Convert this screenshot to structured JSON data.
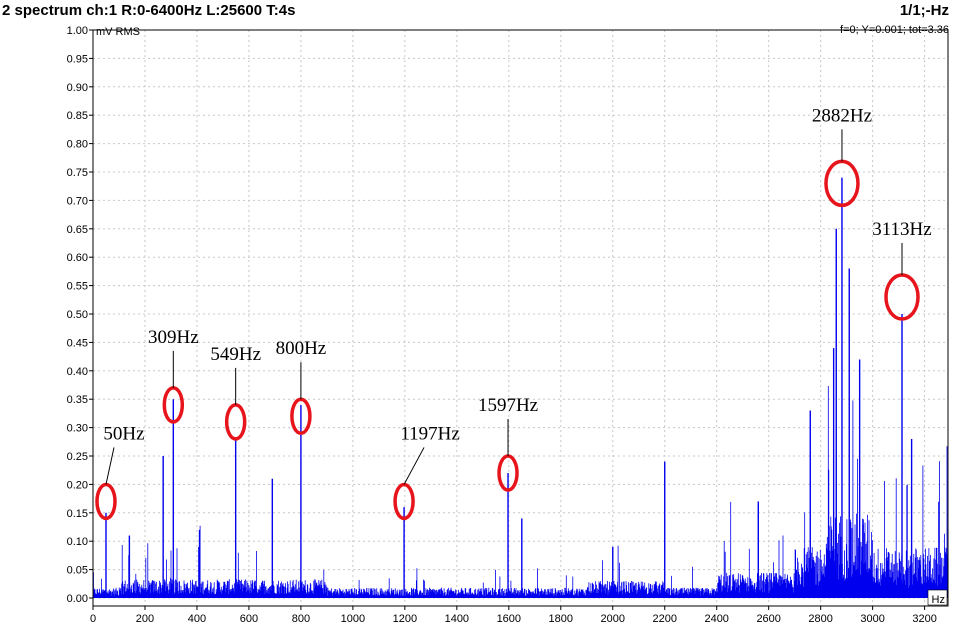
{
  "header": {
    "title": "2 spectrum ch:1 R:0-6400Hz L:25600 T:4s",
    "page_indicator": "1/1;-Hz",
    "status": "f=0; Y=0.001; tot=3.36"
  },
  "colors": {
    "trace": "#0000ee",
    "annotation": "#e8141c",
    "grid": "#c8c8c8"
  },
  "chart_data": {
    "type": "line",
    "ylabel": "mV RMS",
    "xlabel": "Hz",
    "xlim": [
      0,
      3290
    ],
    "ylim": [
      0,
      1.0
    ],
    "yticks": [
      "0.00",
      "0.05",
      "0.10",
      "0.15",
      "0.20",
      "0.25",
      "0.30",
      "0.35",
      "0.40",
      "0.45",
      "0.50",
      "0.55",
      "0.60",
      "0.65",
      "0.70",
      "0.75",
      "0.80",
      "0.85",
      "0.90",
      "0.95",
      "1.00"
    ],
    "xticks": [
      "0",
      "200",
      "400",
      "600",
      "800",
      "1000",
      "1200",
      "1400",
      "1600",
      "1800",
      "2000",
      "2200",
      "2400",
      "2600",
      "2800",
      "3000",
      "3200"
    ],
    "grid": true,
    "peaks": [
      {
        "x": 50,
        "y": 0.15
      },
      {
        "x": 140,
        "y": 0.11
      },
      {
        "x": 270,
        "y": 0.25
      },
      {
        "x": 309,
        "y": 0.35
      },
      {
        "x": 410,
        "y": 0.12
      },
      {
        "x": 549,
        "y": 0.28
      },
      {
        "x": 690,
        "y": 0.21
      },
      {
        "x": 800,
        "y": 0.34
      },
      {
        "x": 1197,
        "y": 0.16
      },
      {
        "x": 1597,
        "y": 0.22
      },
      {
        "x": 1650,
        "y": 0.14
      },
      {
        "x": 2000,
        "y": 0.09
      },
      {
        "x": 2200,
        "y": 0.24
      },
      {
        "x": 2560,
        "y": 0.17
      },
      {
        "x": 2760,
        "y": 0.33
      },
      {
        "x": 2850,
        "y": 0.44
      },
      {
        "x": 2860,
        "y": 0.65
      },
      {
        "x": 2882,
        "y": 0.74
      },
      {
        "x": 2910,
        "y": 0.58
      },
      {
        "x": 2950,
        "y": 0.42
      },
      {
        "x": 3113,
        "y": 0.5
      },
      {
        "x": 3150,
        "y": 0.28
      }
    ],
    "annotations": [
      {
        "label": "50Hz",
        "x": 50,
        "y": 0.17
      },
      {
        "label": "309Hz",
        "x": 309,
        "y": 0.34
      },
      {
        "label": "549Hz",
        "x": 549,
        "y": 0.31
      },
      {
        "label": "800Hz",
        "x": 800,
        "y": 0.32
      },
      {
        "label": "1197Hz",
        "x": 1197,
        "y": 0.17
      },
      {
        "label": "1597Hz",
        "x": 1597,
        "y": 0.22
      },
      {
        "label": "2882Hz",
        "x": 2882,
        "y": 0.73
      },
      {
        "label": "3113Hz",
        "x": 3113,
        "y": 0.53
      }
    ]
  }
}
